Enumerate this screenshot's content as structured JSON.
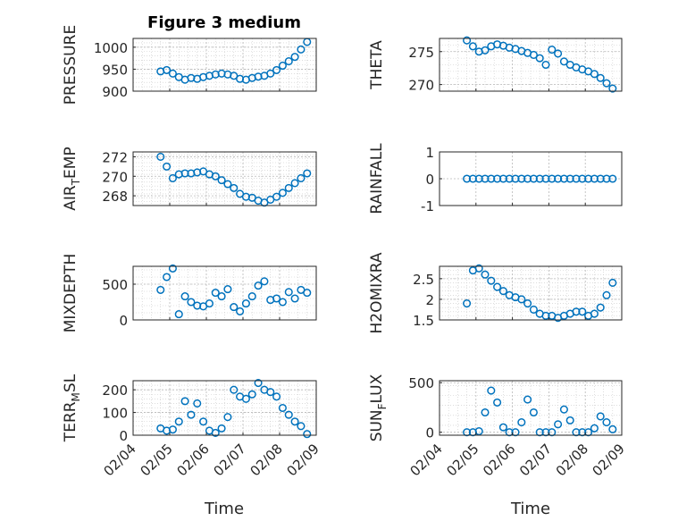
{
  "figure": {
    "title": "Figure 3 medium",
    "colors": {
      "marker": "#0072BD",
      "axis": "#262626",
      "grid": "#c8c8c8"
    }
  },
  "chart_data": [
    {
      "id": "pressure",
      "type": "scatter",
      "ylabel": "PRESSURE",
      "ylim": [
        900,
        1020
      ],
      "yticks": [
        900,
        950,
        1000
      ],
      "grid": true,
      "minor_grid": true,
      "x": [
        "02/04 18:00",
        "02/04 22:00",
        "02/05 02:00",
        "02/05 06:00",
        "02/05 10:00",
        "02/05 14:00",
        "02/05 18:00",
        "02/05 22:00",
        "02/06 02:00",
        "02/06 06:00",
        "02/06 10:00",
        "02/06 14:00",
        "02/06 18:00",
        "02/06 22:00",
        "02/07 02:00",
        "02/07 06:00",
        "02/07 10:00",
        "02/07 14:00",
        "02/07 18:00",
        "02/07 22:00",
        "02/08 02:00",
        "02/08 06:00",
        "02/08 10:00",
        "02/08 14:00",
        "02/08 18:00"
      ],
      "y": [
        945,
        948,
        940,
        932,
        926,
        930,
        928,
        932,
        935,
        938,
        940,
        938,
        935,
        928,
        926,
        930,
        933,
        935,
        940,
        948,
        958,
        968,
        978,
        995,
        1012
      ]
    },
    {
      "id": "theta",
      "type": "scatter",
      "ylabel": "THETA",
      "ylim": [
        269,
        277
      ],
      "yticks": [
        270,
        275
      ],
      "grid": true,
      "minor_grid": true,
      "x": [
        "02/04 18:00",
        "02/04 22:00",
        "02/05 02:00",
        "02/05 06:00",
        "02/05 10:00",
        "02/05 14:00",
        "02/05 18:00",
        "02/05 22:00",
        "02/06 02:00",
        "02/06 06:00",
        "02/06 10:00",
        "02/06 14:00",
        "02/06 18:00",
        "02/06 22:00",
        "02/07 02:00",
        "02/07 06:00",
        "02/07 10:00",
        "02/07 14:00",
        "02/07 18:00",
        "02/07 22:00",
        "02/08 02:00",
        "02/08 06:00",
        "02/08 10:00",
        "02/08 14:00",
        "02/08 18:00"
      ],
      "y": [
        276.7,
        275.8,
        275.0,
        275.2,
        275.8,
        276.1,
        275.9,
        275.6,
        275.4,
        275.1,
        274.8,
        274.5,
        274.0,
        273.0,
        275.3,
        274.7,
        273.5,
        273.0,
        272.6,
        272.3,
        272.0,
        271.6,
        271.0,
        270.2,
        269.4
      ]
    },
    {
      "id": "air_temp",
      "type": "scatter",
      "ylabel": "AIR_TEMP",
      "ylim": [
        267,
        272.5
      ],
      "yticks": [
        268,
        270,
        272
      ],
      "grid": true,
      "minor_grid": true,
      "x": [
        "02/04 18:00",
        "02/04 22:00",
        "02/05 02:00",
        "02/05 06:00",
        "02/05 10:00",
        "02/05 14:00",
        "02/05 18:00",
        "02/05 22:00",
        "02/06 02:00",
        "02/06 06:00",
        "02/06 10:00",
        "02/06 14:00",
        "02/06 18:00",
        "02/06 22:00",
        "02/07 02:00",
        "02/07 06:00",
        "02/07 10:00",
        "02/07 14:00",
        "02/07 18:00",
        "02/07 22:00",
        "02/08 02:00",
        "02/08 06:00",
        "02/08 10:00",
        "02/08 14:00",
        "02/08 18:00"
      ],
      "y": [
        272.0,
        271.0,
        269.8,
        270.2,
        270.3,
        270.3,
        270.4,
        270.5,
        270.2,
        270.0,
        269.6,
        269.2,
        268.8,
        268.2,
        267.9,
        267.8,
        267.5,
        267.3,
        267.6,
        267.9,
        268.3,
        268.8,
        269.3,
        269.8,
        270.3
      ]
    },
    {
      "id": "rainfall",
      "type": "scatter",
      "ylabel": "RAINFALL",
      "ylim": [
        -1,
        1
      ],
      "yticks": [
        -1,
        0,
        1
      ],
      "grid": true,
      "minor_grid": false,
      "x": [
        "02/04 18:00",
        "02/04 22:00",
        "02/05 02:00",
        "02/05 06:00",
        "02/05 10:00",
        "02/05 14:00",
        "02/05 18:00",
        "02/05 22:00",
        "02/06 02:00",
        "02/06 06:00",
        "02/06 10:00",
        "02/06 14:00",
        "02/06 18:00",
        "02/06 22:00",
        "02/07 02:00",
        "02/07 06:00",
        "02/07 10:00",
        "02/07 14:00",
        "02/07 18:00",
        "02/07 22:00",
        "02/08 02:00",
        "02/08 06:00",
        "02/08 10:00",
        "02/08 14:00",
        "02/08 18:00"
      ],
      "y": [
        0,
        0,
        0,
        0,
        0,
        0,
        0,
        0,
        0,
        0,
        0,
        0,
        0,
        0,
        0,
        0,
        0,
        0,
        0,
        0,
        0,
        0,
        0,
        0,
        0
      ]
    },
    {
      "id": "mixdepth",
      "type": "scatter",
      "ylabel": "MIXDEPTH",
      "ylim": [
        0,
        750
      ],
      "yticks": [
        0,
        500
      ],
      "grid": true,
      "minor_grid": true,
      "x": [
        "02/04 18:00",
        "02/04 22:00",
        "02/05 02:00",
        "02/05 06:00",
        "02/05 10:00",
        "02/05 14:00",
        "02/05 18:00",
        "02/05 22:00",
        "02/06 02:00",
        "02/06 06:00",
        "02/06 10:00",
        "02/06 14:00",
        "02/06 18:00",
        "02/06 22:00",
        "02/07 02:00",
        "02/07 06:00",
        "02/07 10:00",
        "02/07 14:00",
        "02/07 18:00",
        "02/07 22:00",
        "02/08 02:00",
        "02/08 06:00",
        "02/08 10:00",
        "02/08 14:00",
        "02/08 18:00"
      ],
      "y": [
        420,
        600,
        720,
        80,
        330,
        250,
        200,
        190,
        230,
        380,
        330,
        430,
        180,
        120,
        230,
        330,
        480,
        540,
        280,
        300,
        250,
        390,
        300,
        420,
        380
      ]
    },
    {
      "id": "h2omixra",
      "type": "scatter",
      "ylabel": "H2OMIXRA",
      "ylim": [
        1.5,
        2.8
      ],
      "yticks": [
        1.5,
        2,
        2.5
      ],
      "grid": true,
      "minor_grid": true,
      "x": [
        "02/04 18:00",
        "02/04 22:00",
        "02/05 02:00",
        "02/05 06:00",
        "02/05 10:00",
        "02/05 14:00",
        "02/05 18:00",
        "02/05 22:00",
        "02/06 02:00",
        "02/06 06:00",
        "02/06 10:00",
        "02/06 14:00",
        "02/06 18:00",
        "02/06 22:00",
        "02/07 02:00",
        "02/07 06:00",
        "02/07 10:00",
        "02/07 14:00",
        "02/07 18:00",
        "02/07 22:00",
        "02/08 02:00",
        "02/08 06:00",
        "02/08 10:00",
        "02/08 14:00",
        "02/08 18:00"
      ],
      "y": [
        1.9,
        2.7,
        2.75,
        2.6,
        2.45,
        2.3,
        2.2,
        2.1,
        2.05,
        2.0,
        1.9,
        1.75,
        1.65,
        1.6,
        1.6,
        1.55,
        1.6,
        1.65,
        1.7,
        1.7,
        1.6,
        1.65,
        1.8,
        2.1,
        2.4
      ]
    },
    {
      "id": "terr_msl",
      "type": "scatter",
      "ylabel": "TERR_MSL",
      "ylim": [
        0,
        240
      ],
      "yticks": [
        0,
        100,
        200
      ],
      "grid": true,
      "minor_grid": true,
      "x": [
        "02/04 18:00",
        "02/04 22:00",
        "02/05 02:00",
        "02/05 06:00",
        "02/05 10:00",
        "02/05 14:00",
        "02/05 18:00",
        "02/05 22:00",
        "02/06 02:00",
        "02/06 06:00",
        "02/06 10:00",
        "02/06 14:00",
        "02/06 18:00",
        "02/06 22:00",
        "02/07 02:00",
        "02/07 06:00",
        "02/07 10:00",
        "02/07 14:00",
        "02/07 18:00",
        "02/07 22:00",
        "02/08 02:00",
        "02/08 06:00",
        "02/08 10:00",
        "02/08 14:00",
        "02/08 18:00"
      ],
      "y": [
        30,
        20,
        25,
        60,
        150,
        90,
        140,
        60,
        20,
        10,
        30,
        80,
        200,
        170,
        160,
        180,
        230,
        200,
        190,
        170,
        120,
        90,
        60,
        40,
        5
      ]
    },
    {
      "id": "sun_flux",
      "type": "scatter",
      "ylabel": "SUN_FLUX",
      "ylim": [
        -30,
        520
      ],
      "yticks": [
        0,
        500
      ],
      "grid": true,
      "minor_grid": true,
      "x": [
        "02/04 18:00",
        "02/04 22:00",
        "02/05 02:00",
        "02/05 06:00",
        "02/05 10:00",
        "02/05 14:00",
        "02/05 18:00",
        "02/05 22:00",
        "02/06 02:00",
        "02/06 06:00",
        "02/06 10:00",
        "02/06 14:00",
        "02/06 18:00",
        "02/06 22:00",
        "02/07 02:00",
        "02/07 06:00",
        "02/07 10:00",
        "02/07 14:00",
        "02/07 18:00",
        "02/07 22:00",
        "02/08 02:00",
        "02/08 06:00",
        "02/08 10:00",
        "02/08 14:00",
        "02/08 18:00"
      ],
      "y": [
        0,
        0,
        10,
        200,
        420,
        300,
        50,
        0,
        0,
        100,
        330,
        200,
        0,
        0,
        0,
        80,
        230,
        120,
        0,
        0,
        0,
        40,
        160,
        100,
        30
      ]
    }
  ],
  "x_axis": {
    "label": "Time",
    "ticks": [
      "02/04",
      "02/05",
      "02/06",
      "02/07",
      "02/08",
      "02/09"
    ],
    "range": [
      "02/04",
      "02/09"
    ]
  }
}
